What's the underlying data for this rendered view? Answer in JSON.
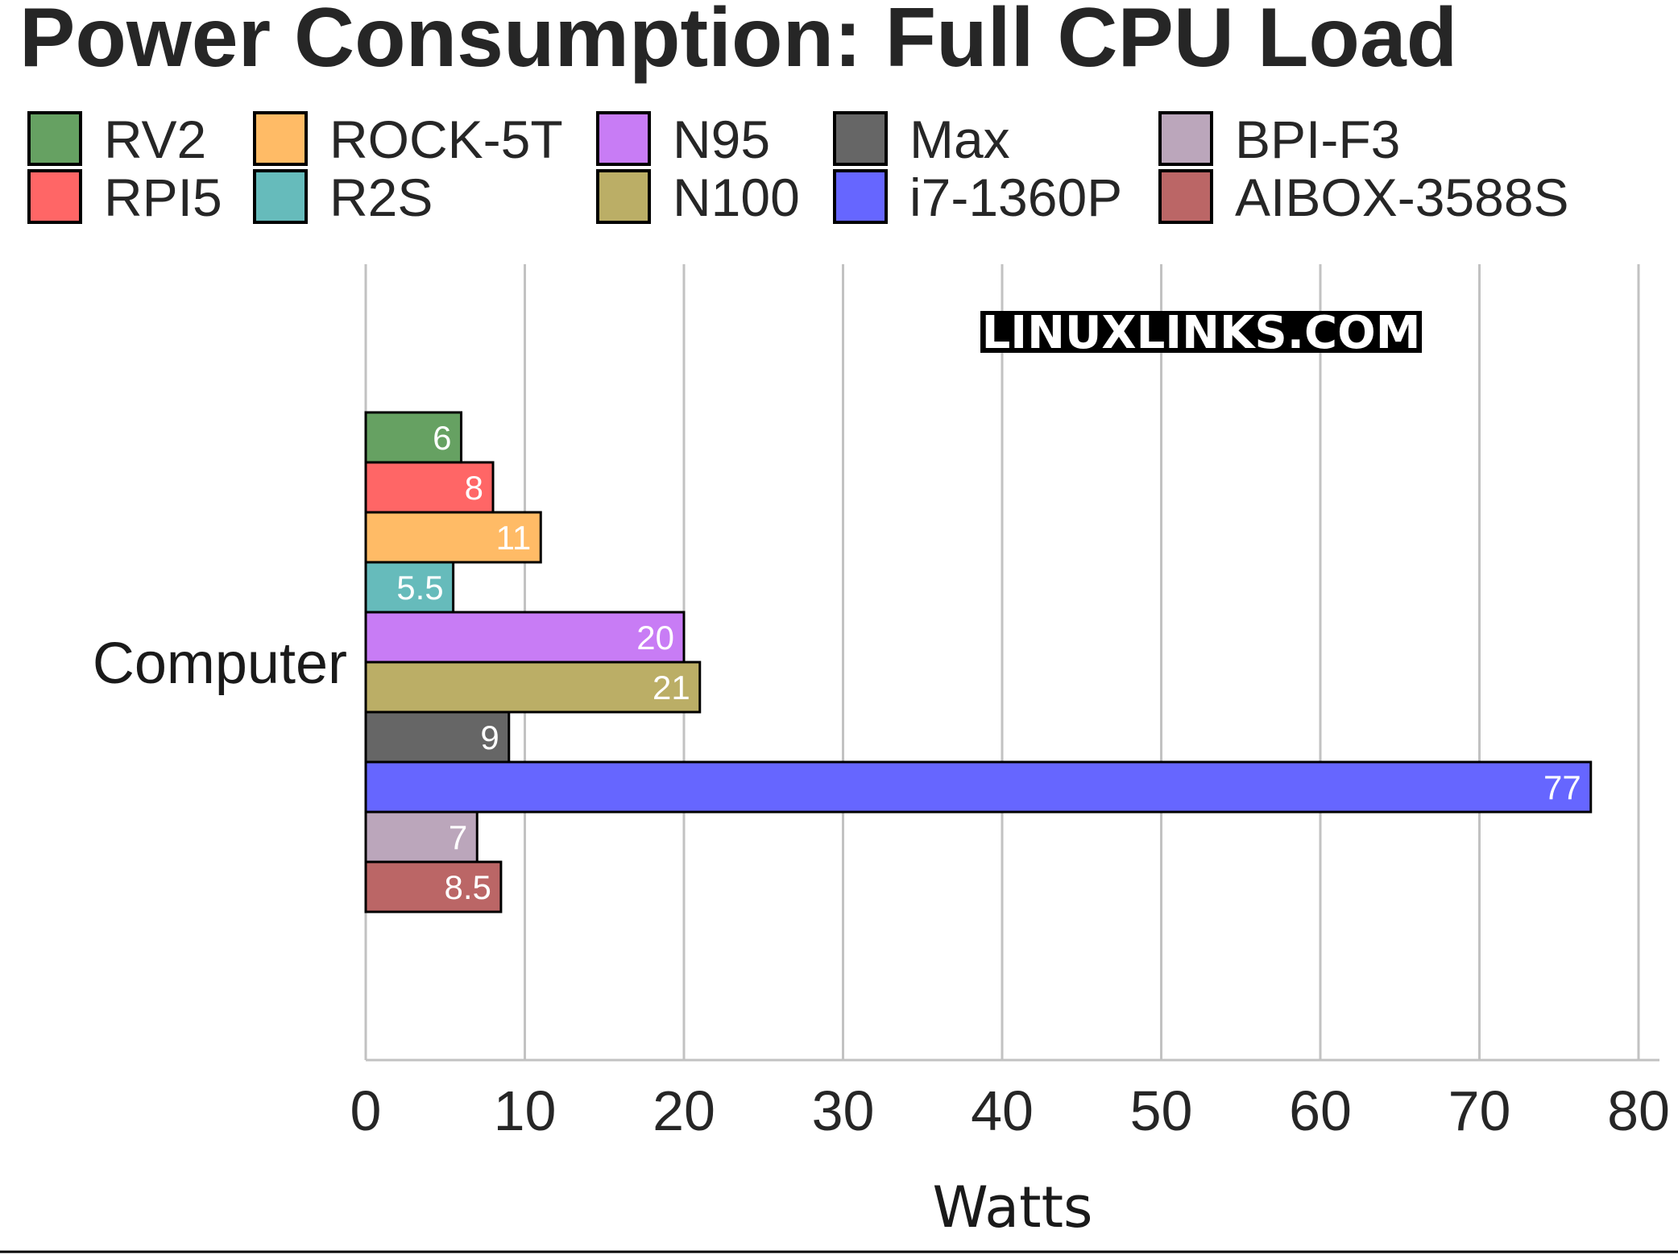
{
  "chart_data": {
    "type": "bar",
    "orientation": "horizontal",
    "title": "Power Consumption: Full CPU Load",
    "xlabel": "Watts",
    "ylabel": "",
    "category": "Computer",
    "xlim": [
      0,
      80
    ],
    "xticks": [
      "0",
      "10",
      "20",
      "30",
      "40",
      "50",
      "60",
      "70",
      "80"
    ],
    "grid": "vertical",
    "legend_position": "top",
    "series": [
      {
        "name": "RV2",
        "value": 6,
        "label": "6",
        "color": "#66a162"
      },
      {
        "name": "RPI5",
        "value": 8,
        "label": "8",
        "color": "#ff6666"
      },
      {
        "name": "ROCK-5T",
        "value": 11,
        "label": "11",
        "color": "#ffbb66"
      },
      {
        "name": "R2S",
        "value": 5.5,
        "label": "5.5",
        "color": "#66bbbb"
      },
      {
        "name": "N95",
        "value": 20,
        "label": "20",
        "color": "#c87cf5"
      },
      {
        "name": "N100",
        "value": 21,
        "label": "21",
        "color": "#bbae66"
      },
      {
        "name": "Max",
        "value": 9,
        "label": "9",
        "color": "#666666"
      },
      {
        "name": "i7-1360P",
        "value": 77,
        "label": "77",
        "color": "#6666ff"
      },
      {
        "name": "BPI-F3",
        "value": 7,
        "label": "7",
        "color": "#bba6bb"
      },
      {
        "name": "AIBOX-3588S",
        "value": 8.5,
        "label": "8.5",
        "color": "#bb6666"
      }
    ]
  },
  "watermark": "LINUXLINKS.COM"
}
